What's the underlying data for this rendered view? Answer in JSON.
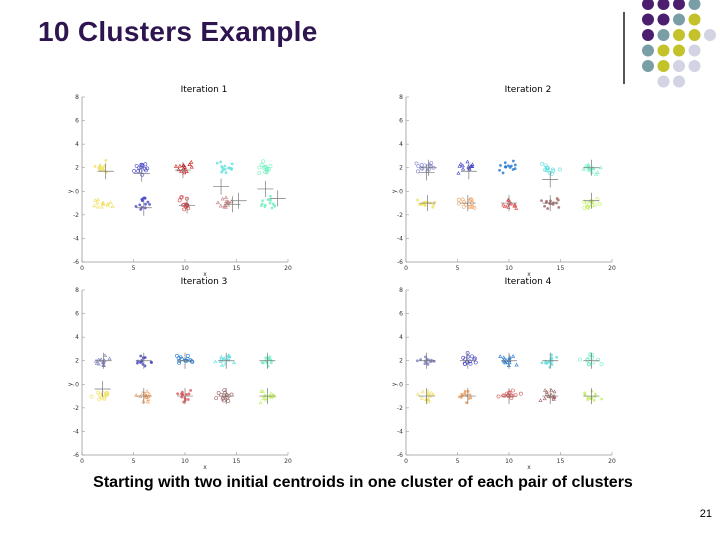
{
  "slide": {
    "title": "10 Clusters Example",
    "caption": "Starting with two initial centroids in one cluster of each pair of clusters",
    "page_number": "21",
    "deco_colors": [
      "#4b1f6e",
      "#7a9ea6",
      "#c3c22a",
      "#d2d3e3"
    ]
  },
  "cluster_colors": [
    "#f0e060",
    "#6a6ad8",
    "#1f77d0",
    "#60e0e0",
    "#70f0c0",
    "#f0f070",
    "#7070e0",
    "#e07070",
    "#c08080",
    "#80f0c0"
  ],
  "chart_data": [
    {
      "type": "scatter",
      "title": "Iteration 1",
      "xlabel": "x",
      "ylabel": "y",
      "xlim": [
        0,
        20
      ],
      "ylim": [
        -6,
        8
      ],
      "xticks": [
        "0",
        "5",
        "10",
        "15",
        "20"
      ],
      "yticks": [
        "8",
        "6",
        "4",
        "2",
        "0",
        "-2",
        "-4",
        "-6"
      ],
      "ytick_values": [
        8,
        6,
        4,
        2,
        0,
        -2,
        -4,
        -6
      ],
      "cluster_centers": [
        [
          2,
          2
        ],
        [
          6,
          2
        ],
        [
          10,
          2
        ],
        [
          14,
          2
        ],
        [
          18,
          2
        ],
        [
          2,
          -1
        ],
        [
          6,
          -1
        ],
        [
          10,
          -1
        ],
        [
          14,
          -1
        ],
        [
          18,
          -1
        ]
      ],
      "cluster_colors": [
        "#f0e060",
        "#4646c8",
        "#c81818",
        "#60e0e0",
        "#70f0c0",
        "#f0e060",
        "#4646c8",
        "#d04040",
        "#c08080",
        "#70f0c0"
      ],
      "centroids": [
        [
          2.3,
          1.7
        ],
        [
          5.8,
          1.5
        ],
        [
          9.8,
          1.8
        ],
        [
          13.5,
          0.4
        ],
        [
          15.2,
          -0.8
        ],
        [
          17.8,
          0.2
        ],
        [
          19,
          -0.6
        ],
        [
          6,
          -1.4
        ],
        [
          10.2,
          -1.2
        ],
        [
          14.6,
          -1.1
        ]
      ]
    },
    {
      "type": "scatter",
      "title": "Iteration 2",
      "xlabel": "x",
      "ylabel": "y",
      "xlim": [
        0,
        20
      ],
      "ylim": [
        -6,
        8
      ],
      "xticks": [
        "0",
        "5",
        "10",
        "15",
        "20"
      ],
      "yticks": [
        "8",
        "6",
        "4",
        "2",
        "0",
        "-2",
        "-4",
        "-6"
      ],
      "ytick_values": [
        8,
        6,
        4,
        2,
        0,
        -2,
        -4,
        -6
      ],
      "cluster_centers": [
        [
          2,
          2
        ],
        [
          6,
          2
        ],
        [
          10,
          2
        ],
        [
          14,
          2
        ],
        [
          18,
          2
        ],
        [
          2,
          -1
        ],
        [
          6,
          -1
        ],
        [
          10,
          -1
        ],
        [
          14,
          -1
        ],
        [
          18,
          -1
        ]
      ],
      "cluster_colors": [
        "#8080d0",
        "#4646c8",
        "#1f77d0",
        "#60e0e0",
        "#70f0c0",
        "#f0e060",
        "#f0a060",
        "#e05050",
        "#a06060",
        "#c0f060"
      ],
      "centroids": [
        [
          2.2,
          2.0
        ],
        [
          2.0,
          1.6
        ],
        [
          6.1,
          1.7
        ],
        [
          14.0,
          1.0
        ],
        [
          18.0,
          2.0
        ],
        [
          2.1,
          -1.0
        ],
        [
          6.0,
          -1.0
        ],
        [
          10.0,
          -1.0
        ],
        [
          14.0,
          -1.0
        ],
        [
          18.0,
          -0.8
        ]
      ]
    },
    {
      "type": "scatter",
      "title": "Iteration 3",
      "xlabel": "x",
      "ylabel": "y",
      "xlim": [
        0,
        20
      ],
      "ylim": [
        -6,
        8
      ],
      "xticks": [
        "0",
        "5",
        "10",
        "15",
        "20"
      ],
      "yticks": [
        "8",
        "6",
        "4",
        "2",
        "0",
        "-2",
        "-4",
        "-6"
      ],
      "ytick_values": [
        8,
        6,
        4,
        2,
        0,
        -2,
        -4,
        -6
      ],
      "cluster_centers": [
        [
          2,
          2
        ],
        [
          6,
          2
        ],
        [
          10,
          2
        ],
        [
          14,
          2
        ],
        [
          18,
          2
        ],
        [
          2,
          -1
        ],
        [
          6,
          -1
        ],
        [
          10,
          -1
        ],
        [
          14,
          -1
        ],
        [
          18,
          -1
        ]
      ],
      "cluster_colors": [
        "#8080c0",
        "#4646c8",
        "#1f77d0",
        "#60e0e0",
        "#70f0c0",
        "#f0e060",
        "#f0a060",
        "#e05050",
        "#a06060",
        "#c0f060"
      ],
      "centroids": [
        [
          2.1,
          2.0
        ],
        [
          6.0,
          2.0
        ],
        [
          10.0,
          2.0
        ],
        [
          14.0,
          2.0
        ],
        [
          18.0,
          2.0
        ],
        [
          2.0,
          -0.4
        ],
        [
          6.0,
          -1.0
        ],
        [
          10.0,
          -1.0
        ],
        [
          14.0,
          -1.0
        ],
        [
          18.0,
          -1.0
        ]
      ]
    },
    {
      "type": "scatter",
      "title": "Iteration 4",
      "xlabel": "x",
      "ylabel": "y",
      "xlim": [
        0,
        20
      ],
      "ylim": [
        -6,
        8
      ],
      "xticks": [
        "0",
        "5",
        "10",
        "15",
        "20"
      ],
      "yticks": [
        "8",
        "6",
        "4",
        "2",
        "0",
        "-2",
        "-4",
        "-6"
      ],
      "ytick_values": [
        8,
        6,
        4,
        2,
        0,
        -2,
        -4,
        -6
      ],
      "cluster_centers": [
        [
          2,
          2
        ],
        [
          6,
          2
        ],
        [
          10,
          2
        ],
        [
          14,
          2
        ],
        [
          18,
          2
        ],
        [
          2,
          -1
        ],
        [
          6,
          -1
        ],
        [
          10,
          -1
        ],
        [
          14,
          -1
        ],
        [
          18,
          -1
        ]
      ],
      "cluster_colors": [
        "#8080c0",
        "#4646c8",
        "#1f77d0",
        "#60e0e0",
        "#70f0c0",
        "#f0e060",
        "#f0a060",
        "#e05050",
        "#a06060",
        "#c0f060"
      ],
      "centroids": [
        [
          2.0,
          2.0
        ],
        [
          6.0,
          2.0
        ],
        [
          10.0,
          2.0
        ],
        [
          14.0,
          2.0
        ],
        [
          18.0,
          2.0
        ],
        [
          2.0,
          -1.0
        ],
        [
          6.0,
          -1.0
        ],
        [
          10.0,
          -1.0
        ],
        [
          14.0,
          -1.0
        ],
        [
          18.0,
          -1.0
        ]
      ]
    }
  ]
}
